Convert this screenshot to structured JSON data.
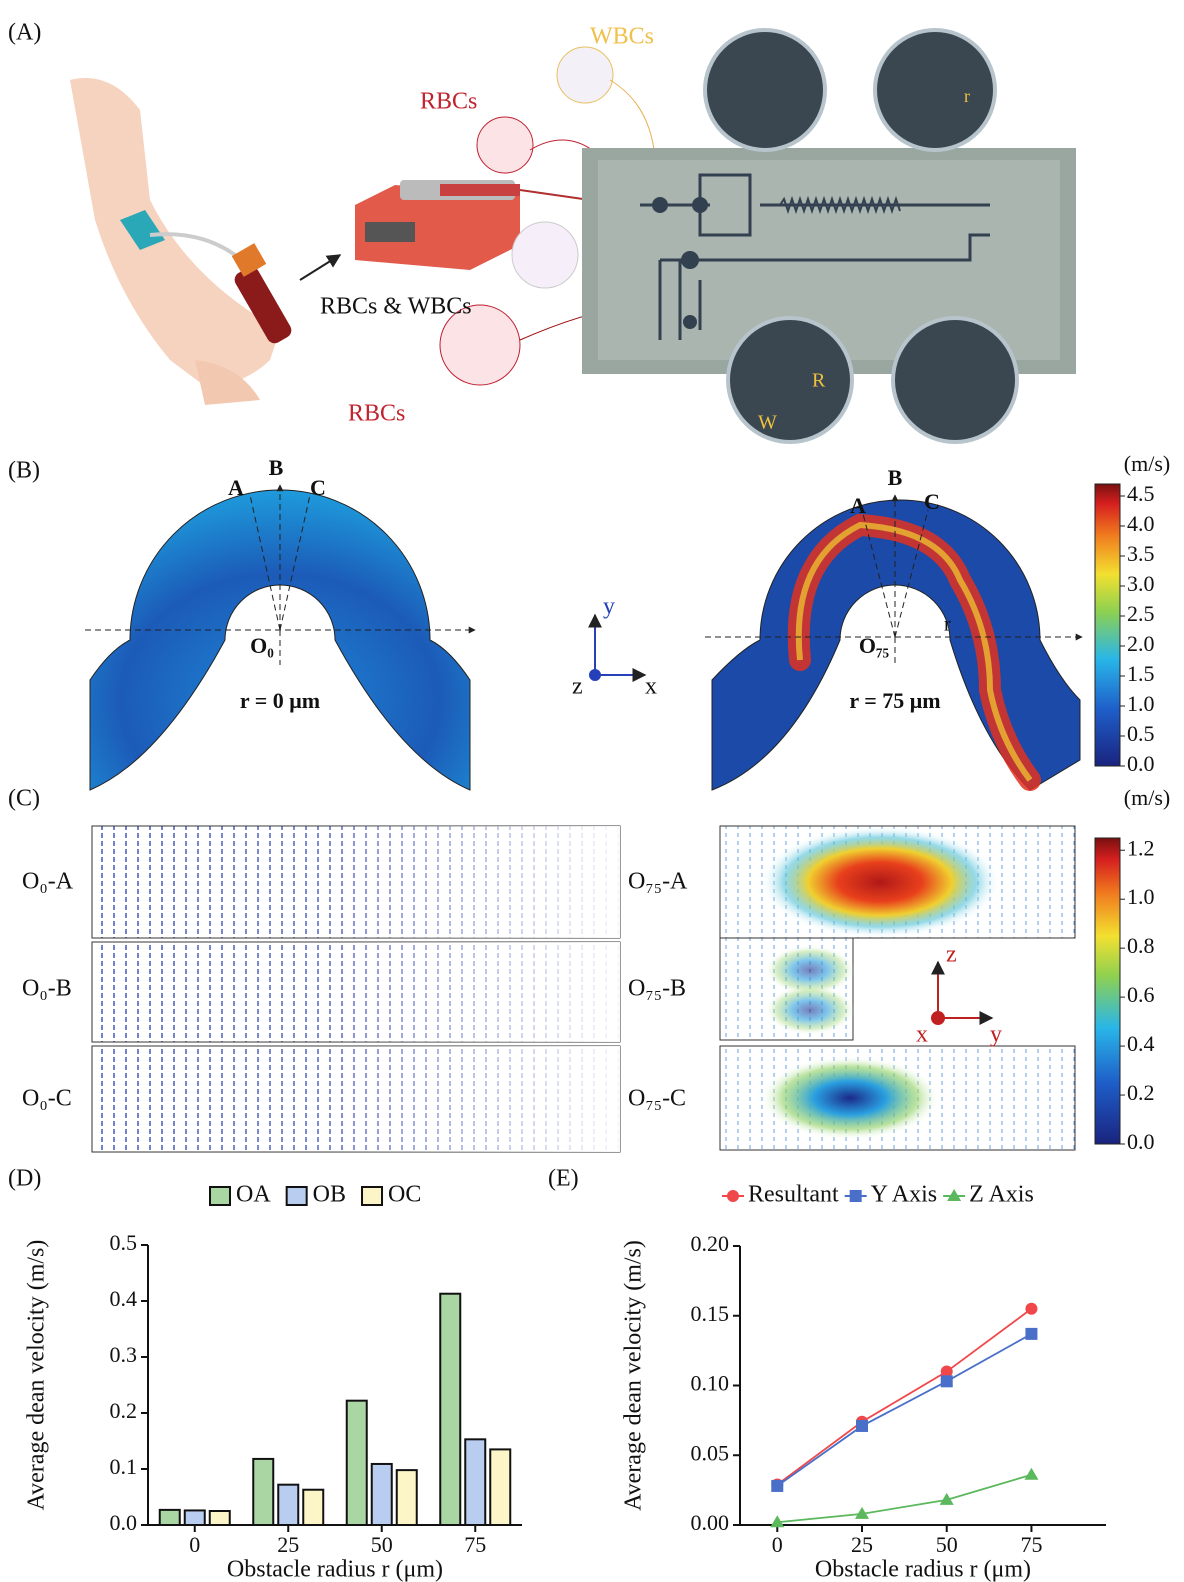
{
  "panel_labels": [
    "(A)",
    "(B)",
    "(C)",
    "(D)",
    "(E)"
  ],
  "panel_a": {
    "wbcs": "WBCs",
    "rbcs_top": "RBCs",
    "mixed": "RBCs & WBCs",
    "rbcs_bottom": "RBCs",
    "small_r": "r",
    "big_r": "R",
    "width": "W"
  },
  "panel_b": {
    "left": {
      "points": [
        "A",
        "B",
        "C"
      ],
      "origin": "O₀",
      "radius": "r = 0 μm"
    },
    "right": {
      "points": [
        "A",
        "B",
        "C"
      ],
      "origin": "O₇₅",
      "radius": "r = 75 μm",
      "r": "r"
    },
    "axes": [
      "y",
      "z",
      "x"
    ],
    "colorbar": {
      "label": "(m/s)",
      "lim": [
        0,
        4.7
      ],
      "ticks": [
        {
          "value": 0,
          "label": "0.0"
        },
        0.5,
        {
          "value": 1,
          "label": "1.0"
        },
        1.5,
        {
          "value": 2,
          "label": "2.0"
        },
        2.5,
        {
          "value": 3,
          "label": "3.0"
        },
        3.5,
        {
          "value": 4,
          "label": "4.0"
        },
        4.5
      ]
    }
  },
  "panel_c": {
    "labels": [
      "O₀-A",
      "O₀-B",
      "O₀-C",
      "O₇₅-A",
      "O₇₅-B",
      "O₇₅-C"
    ],
    "axes": [
      "z",
      "x",
      "y"
    ],
    "colorbar": {
      "label": "(m/s)",
      "lim": [
        0,
        1.25
      ],
      "ticks": [
        {
          "value": 0,
          "label": "0.0"
        },
        0.2,
        0.4,
        0.6,
        0.8,
        {
          "value": 1,
          "label": "1.0"
        },
        1.2
      ]
    }
  },
  "chart_data": [
    {
      "type": "bar",
      "y_label": "Average dean velocity (m/s)",
      "x_label": "Obstacle radius r (μm)",
      "categories": [
        "0",
        "25",
        "50",
        "75"
      ],
      "series": [
        {
          "name": "OA",
          "color": "#a9d6a3",
          "values": [
            0.027,
            0.118,
            0.222,
            0.413
          ]
        },
        {
          "name": "OB",
          "color": "#b9cdf0",
          "values": [
            0.026,
            0.072,
            0.109,
            0.153
          ]
        },
        {
          "name": "OC",
          "color": "#fbf5c8",
          "values": [
            0.025,
            0.063,
            0.098,
            0.135
          ]
        }
      ],
      "ylim": [
        0,
        0.5
      ],
      "yticks": [
        {
          "value": 0,
          "label": "0.0"
        },
        0.1,
        0.2,
        0.3,
        0.4,
        0.5
      ],
      "legend": "top"
    },
    {
      "type": "line",
      "y_label": "Average dean velocity (m/s)",
      "x_label": "Obstacle radius r (μm)",
      "x": [
        0,
        25,
        50,
        75
      ],
      "series": [
        {
          "name": "Resultant",
          "color": "#f0474a",
          "marker": "circle",
          "values": [
            0.029,
            0.074,
            0.11,
            0.155
          ]
        },
        {
          "name": "Y Axis",
          "color": "#4a6fc9",
          "marker": "square",
          "values": [
            0.028,
            0.071,
            0.103,
            0.137
          ]
        },
        {
          "name": "Z Axis",
          "color": "#5cb85c",
          "marker": "triangle",
          "values": [
            0.002,
            0.008,
            0.018,
            0.036
          ]
        }
      ],
      "xlim": [
        -11,
        97
      ],
      "xticks": [
        0,
        25,
        50,
        75
      ],
      "ylim": [
        0,
        0.2
      ],
      "yticks": [
        {
          "value": 0,
          "label": "0.00"
        },
        0.05,
        {
          "value": 0.1,
          "label": "0.10"
        },
        0.15,
        {
          "value": 0.2,
          "label": "0.20"
        }
      ],
      "legend": "top"
    }
  ]
}
